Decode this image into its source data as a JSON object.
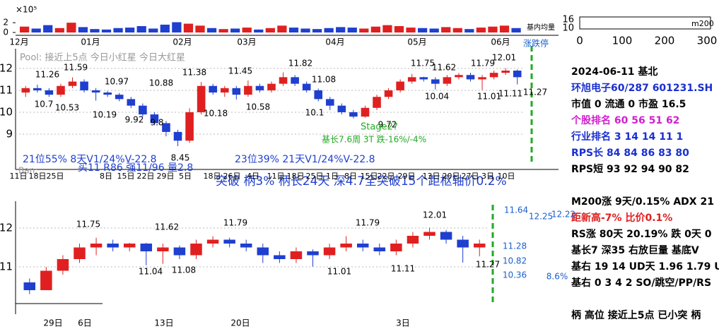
{
  "volume_chart": {
    "type": "bar",
    "scale_label": "×10⁵",
    "legend": "基内均量",
    "ylim": [
      0,
      2.6
    ],
    "yticks": [
      0,
      2
    ],
    "values": [
      1.2,
      0.8,
      1.5,
      0.9,
      2.0,
      1.1,
      0.7,
      0.6,
      0.9,
      1.0,
      1.3,
      0.8,
      1.6,
      2.1,
      1.8,
      1.4,
      0.9,
      0.7,
      0.8,
      1.0,
      0.6,
      0.9,
      1.4,
      1.0,
      0.8,
      0.7,
      0.9,
      1.1,
      1.0,
      0.8,
      1.2,
      1.5,
      1.3,
      1.0,
      0.9,
      0.8,
      1.1,
      0.9,
      0.7,
      1.0,
      1.2,
      1.4,
      0.9
    ],
    "months": [
      "12月",
      "01月",
      "02月",
      "03月",
      "04月",
      "05月",
      "06月"
    ]
  },
  "main_chart": {
    "type": "candlestick",
    "ylim": [
      8,
      12.9
    ],
    "yticks": [
      9,
      10,
      11,
      12
    ],
    "candles": [
      [
        10.9,
        11.1,
        10.7,
        11.2
      ],
      [
        11.1,
        11.0,
        10.9,
        11.26
      ],
      [
        11.0,
        10.8,
        10.7,
        11.1
      ],
      [
        10.8,
        11.2,
        10.7,
        11.3
      ],
      [
        11.2,
        11.4,
        11.1,
        11.59
      ],
      [
        11.4,
        11.0,
        10.9,
        11.5
      ],
      [
        11.0,
        10.9,
        10.53,
        11.1
      ],
      [
        10.9,
        10.8,
        10.7,
        10.97
      ],
      [
        10.8,
        10.6,
        10.5,
        10.88
      ],
      [
        10.6,
        10.3,
        10.19,
        10.7
      ],
      [
        10.3,
        9.9,
        9.8,
        10.4
      ],
      [
        9.9,
        9.5,
        9.4,
        10.0
      ],
      [
        9.5,
        9.1,
        8.9,
        9.6
      ],
      [
        9.1,
        8.7,
        8.45,
        9.2
      ],
      [
        8.7,
        10.0,
        8.6,
        10.18
      ],
      [
        10.0,
        11.2,
        9.9,
        11.38
      ],
      [
        11.2,
        10.9,
        10.8,
        11.3
      ],
      [
        10.9,
        11.1,
        10.7,
        11.2
      ],
      [
        11.1,
        10.8,
        10.58,
        11.2
      ],
      [
        10.8,
        11.2,
        10.7,
        11.45
      ],
      [
        11.2,
        11.0,
        10.9,
        11.3
      ],
      [
        11.0,
        11.3,
        10.9,
        11.4
      ],
      [
        11.3,
        11.6,
        11.2,
        11.82
      ],
      [
        11.6,
        11.3,
        11.2,
        11.7
      ],
      [
        11.3,
        11.0,
        10.9,
        11.4
      ],
      [
        11.0,
        10.6,
        10.5,
        11.08
      ],
      [
        10.6,
        10.3,
        10.1,
        10.7
      ],
      [
        10.3,
        10.0,
        9.9,
        10.4
      ],
      [
        10.0,
        9.8,
        9.72,
        10.1
      ],
      [
        9.8,
        10.2,
        9.75,
        10.3
      ],
      [
        10.2,
        10.7,
        10.1,
        10.8
      ],
      [
        10.7,
        11.0,
        10.6,
        11.1
      ],
      [
        11.0,
        11.4,
        10.9,
        11.5
      ],
      [
        11.4,
        11.6,
        11.3,
        11.75
      ],
      [
        11.6,
        11.5,
        11.4,
        11.62
      ],
      [
        11.5,
        11.3,
        11.04,
        11.6
      ],
      [
        11.3,
        11.6,
        11.2,
        11.7
      ],
      [
        11.6,
        11.7,
        11.5,
        11.79
      ],
      [
        11.7,
        11.5,
        11.4,
        11.8
      ],
      [
        11.5,
        11.6,
        11.01,
        11.7
      ],
      [
        11.6,
        11.8,
        11.5,
        11.9
      ],
      [
        11.8,
        11.9,
        11.7,
        12.01
      ],
      [
        11.9,
        11.6,
        11.27,
        11.95
      ]
    ],
    "price_labels": [
      "11.26",
      "11.59",
      "10.97",
      "10.88",
      "11.38",
      "11.45",
      "11.82",
      "11.08",
      "11.75",
      "11.62",
      "11.79",
      "12.01",
      "10.7",
      "10.53",
      "10.19",
      "9.92",
      "9.8",
      "8.45",
      "10.18",
      "10.58",
      "10.1",
      "10.04",
      "11.01",
      "11.11",
      "11.27",
      "9.72"
    ],
    "notes": [
      "Pool: 接近上5点 今日小红星 今日大红星",
      "21位55% 8天V1/24%V-22.8",
      "买11 R86 强11/96 量2.8",
      "23位39% 21天V1/24%V-22.8",
      "突破 柄3% 柄长24天 深4.7全突破15个距枢轴价0.2%",
      "Stage2?",
      "基长7.6周 3T 跌-16%/-4%",
      "Ban:"
    ],
    "dates": [
      "11日",
      "18日",
      "25日",
      "8日",
      "15日",
      "22日",
      "29日",
      "5日",
      "18日",
      "26日",
      "4日",
      "11日",
      "18日",
      "25日",
      "1日",
      "8日",
      "15日",
      "22日",
      "29日",
      "13日",
      "20日",
      "27日",
      "3日",
      "10日"
    ]
  },
  "lower_chart": {
    "type": "candlestick",
    "ylim": [
      10.3,
      12.7
    ],
    "yticks": [
      11,
      12
    ],
    "candles": [
      [
        10.6,
        10.4,
        10.3,
        10.7
      ],
      [
        10.4,
        10.9,
        10.4,
        11.0
      ],
      [
        10.9,
        11.2,
        10.8,
        11.3
      ],
      [
        11.2,
        11.5,
        11.1,
        11.6
      ],
      [
        11.5,
        11.6,
        11.3,
        11.75
      ],
      [
        11.6,
        11.5,
        11.4,
        11.7
      ],
      [
        11.5,
        11.6,
        11.4,
        11.62
      ],
      [
        11.6,
        11.4,
        11.04,
        11.62
      ],
      [
        11.4,
        11.5,
        11.08,
        11.6
      ],
      [
        11.5,
        11.3,
        11.2,
        11.55
      ],
      [
        11.3,
        11.6,
        11.2,
        11.7
      ],
      [
        11.6,
        11.7,
        11.5,
        11.79
      ],
      [
        11.7,
        11.6,
        11.5,
        11.75
      ],
      [
        11.6,
        11.5,
        11.4,
        11.7
      ],
      [
        11.5,
        11.3,
        11.1,
        11.6
      ],
      [
        11.3,
        11.2,
        11.1,
        11.4
      ],
      [
        11.2,
        11.4,
        11.1,
        11.5
      ],
      [
        11.4,
        11.3,
        11.01,
        11.45
      ],
      [
        11.3,
        11.5,
        11.2,
        11.6
      ],
      [
        11.5,
        11.6,
        11.4,
        11.79
      ],
      [
        11.6,
        11.5,
        11.4,
        11.7
      ],
      [
        11.5,
        11.4,
        11.3,
        11.6
      ],
      [
        11.4,
        11.6,
        11.3,
        11.7
      ],
      [
        11.6,
        11.8,
        11.5,
        11.9
      ],
      [
        11.8,
        11.9,
        11.7,
        12.01
      ],
      [
        11.9,
        11.7,
        11.6,
        11.95
      ],
      [
        11.7,
        11.5,
        11.11,
        11.8
      ],
      [
        11.5,
        11.6,
        11.27,
        11.7
      ]
    ],
    "price_labels": [
      "11.75",
      "11.62",
      "11.79",
      "11.79",
      "12.01",
      "11.04",
      "11.08",
      "11.01",
      "11.11",
      "11.27",
      "11.64",
      "12.25",
      "12.22",
      "11.28",
      "10.82",
      "10.36",
      "8.6%"
    ],
    "dates": [
      "29日",
      "6日",
      "13日",
      "20日",
      "3日"
    ]
  },
  "mini_chart": {
    "xticks": [
      0,
      100,
      200,
      300
    ],
    "yticks": [
      10,
      16
    ],
    "label": "m200"
  },
  "side_label": "涨跌停",
  "info_panel": {
    "lines": [
      "2024-06-11 基北",
      "环旭电子60/287 601231.SH",
      "市值 0 流通 0 市盈 16.5",
      "个股排名 60 56 51 62",
      "行业排名 3 14 14 11 1",
      "RPS长 84 84 86 83 80",
      "RPS短 93 92 94 90 82",
      "M200涨 9天/0.15% ADX 21",
      "距新高-7% 比价0.1%",
      "RS涨 80天 20.19% 跌 0天 0",
      "基长7 深35 右放巨量 基底V",
      "基右 19 14 UD天 1.96 1.79 U",
      "基右 0 3 4 2 SO/跳空/PP/RS",
      "柄 高位 接近上5点 已小突 柄"
    ]
  }
}
